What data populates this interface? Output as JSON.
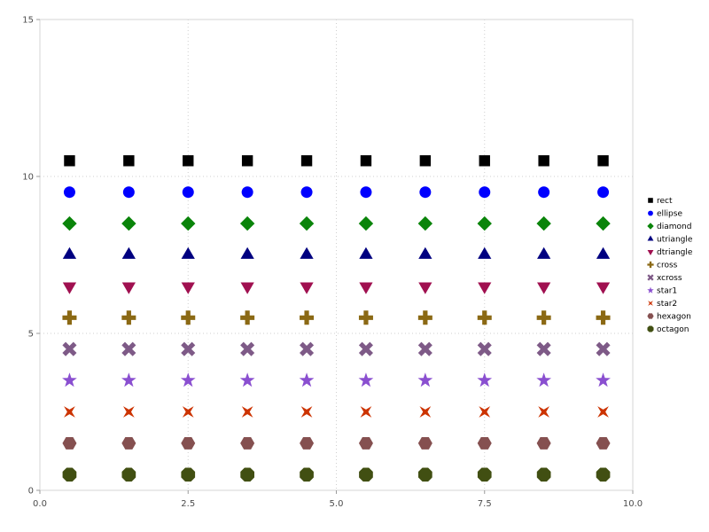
{
  "chart_data": {
    "type": "scatter",
    "title": "",
    "xlabel": "",
    "ylabel": "",
    "xlim": [
      0,
      10
    ],
    "ylim": [
      0,
      15
    ],
    "grid": "dotted",
    "legend_position": "right",
    "x": [
      0.5,
      1.5,
      2.5,
      3.5,
      4.5,
      5.5,
      6.5,
      7.5,
      8.5,
      9.5
    ],
    "xticks": [
      {
        "v": 0,
        "label": "0.0"
      },
      {
        "v": 2.5,
        "label": "2.5"
      },
      {
        "v": 5,
        "label": "5.0"
      },
      {
        "v": 7.5,
        "label": "7.5"
      },
      {
        "v": 10,
        "label": "10.0"
      }
    ],
    "yticks": [
      {
        "v": 0,
        "label": "0"
      },
      {
        "v": 5,
        "label": "5"
      },
      {
        "v": 10,
        "label": "10"
      },
      {
        "v": 15,
        "label": "15"
      }
    ],
    "series": [
      {
        "name": "rect",
        "marker": "rect",
        "color": "#000000",
        "y": 10.5
      },
      {
        "name": "ellipse",
        "marker": "ellipse",
        "color": "#0000ff",
        "y": 9.5
      },
      {
        "name": "diamond",
        "marker": "diamond",
        "color": "#0a840a",
        "y": 8.5
      },
      {
        "name": "utriangle",
        "marker": "utriangle",
        "color": "#000080",
        "y": 7.5
      },
      {
        "name": "dtriangle",
        "marker": "dtriangle",
        "color": "#a01050",
        "y": 6.5
      },
      {
        "name": "cross",
        "marker": "cross",
        "color": "#8b6914",
        "y": 5.5
      },
      {
        "name": "xcross",
        "marker": "xcross",
        "color": "#7e5a87",
        "y": 4.5
      },
      {
        "name": "star1",
        "marker": "star1",
        "color": "#8a4fd0",
        "y": 3.5
      },
      {
        "name": "star2",
        "marker": "star2",
        "color": "#cc3300",
        "y": 2.5
      },
      {
        "name": "hexagon",
        "marker": "hexagon",
        "color": "#855050",
        "y": 1.5
      },
      {
        "name": "octagon",
        "marker": "octagon",
        "color": "#414f12",
        "y": 0.5
      }
    ]
  }
}
